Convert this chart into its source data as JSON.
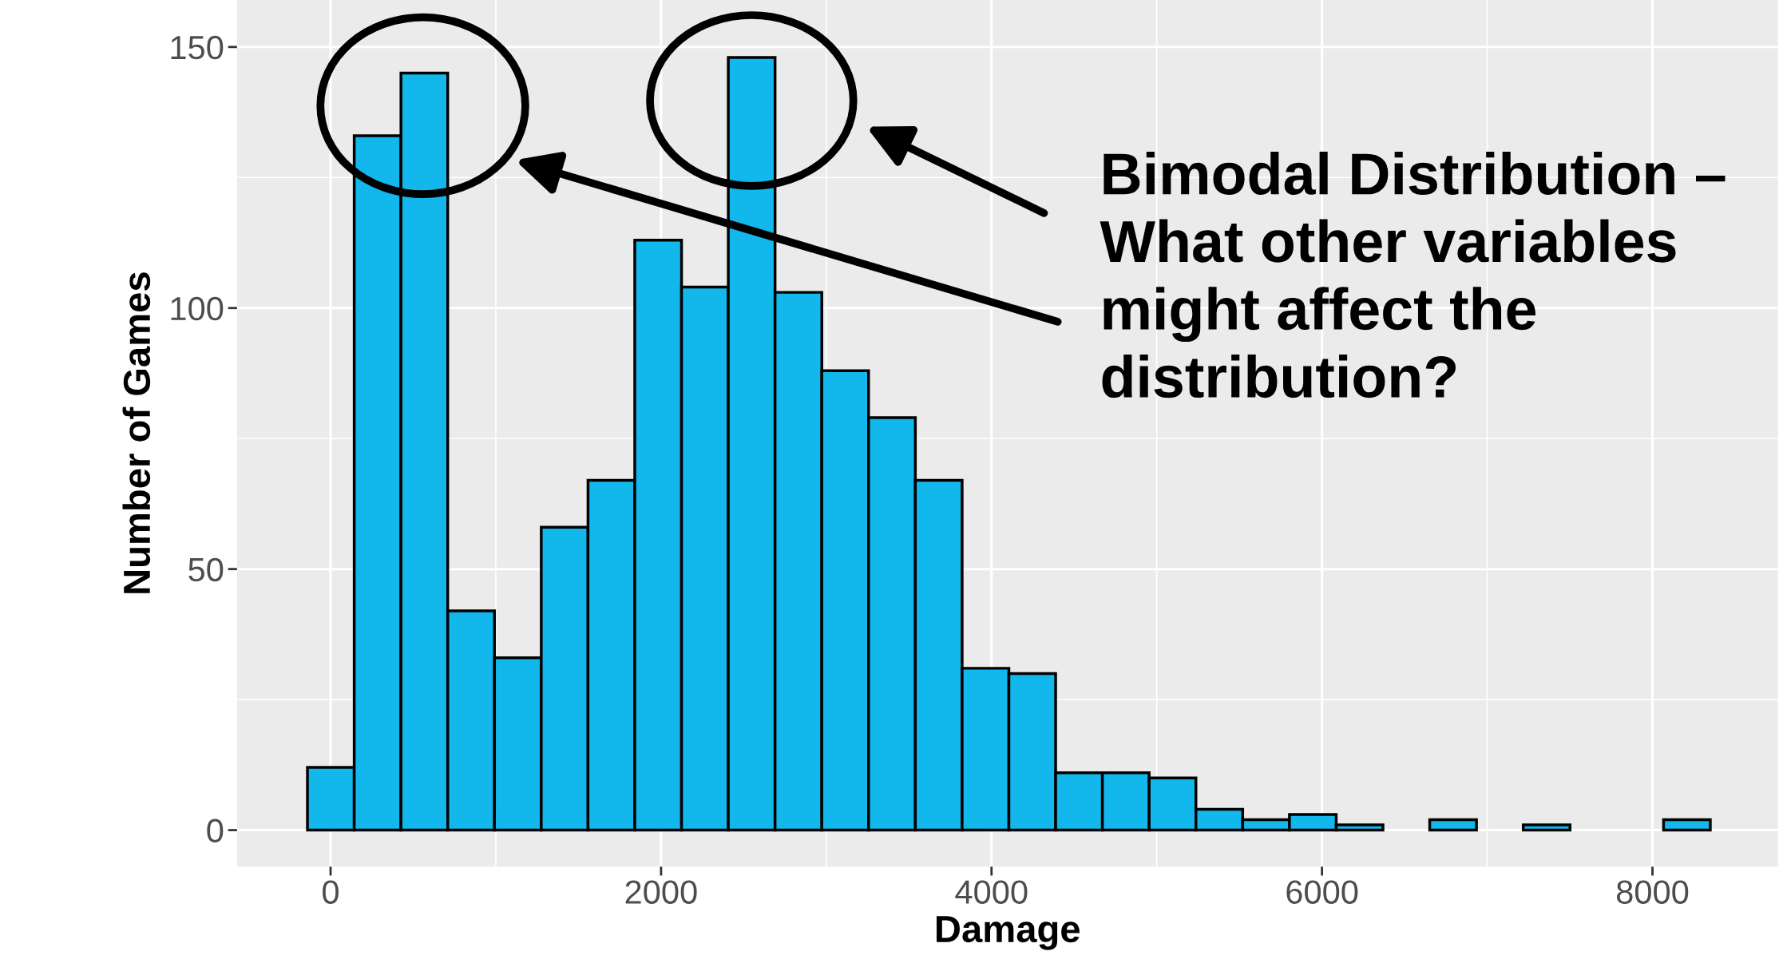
{
  "chart_data": {
    "type": "histogram",
    "xlabel": "Damage",
    "ylabel": "Number of Games",
    "bins": [
      -140,
      143,
      426,
      709,
      992,
      1275,
      1558,
      1841,
      2124,
      2407,
      2690,
      2973,
      3256,
      3539,
      3822,
      4105,
      4388,
      4671,
      4954,
      5237,
      5520,
      5803,
      6086,
      6369,
      6652,
      6935,
      7218,
      7501,
      7784,
      8067,
      8350
    ],
    "values": [
      12,
      133,
      145,
      42,
      33,
      58,
      67,
      113,
      104,
      148,
      103,
      88,
      79,
      67,
      31,
      30,
      11,
      11,
      10,
      4,
      2,
      3,
      1,
      0,
      2,
      0,
      1,
      0,
      0,
      2
    ],
    "color": "#12b7ec",
    "xlim": [
      -566,
      8759
    ],
    "ylim": [
      -7,
      159
    ],
    "xticks": [
      0,
      2000,
      4000,
      6000,
      8000
    ],
    "yticks": [
      0,
      50,
      100,
      150
    ],
    "grid": true,
    "annotations": [
      "Bimodal Distribution –\nWhat other variables\nmight affect the\ndistribution?"
    ]
  }
}
